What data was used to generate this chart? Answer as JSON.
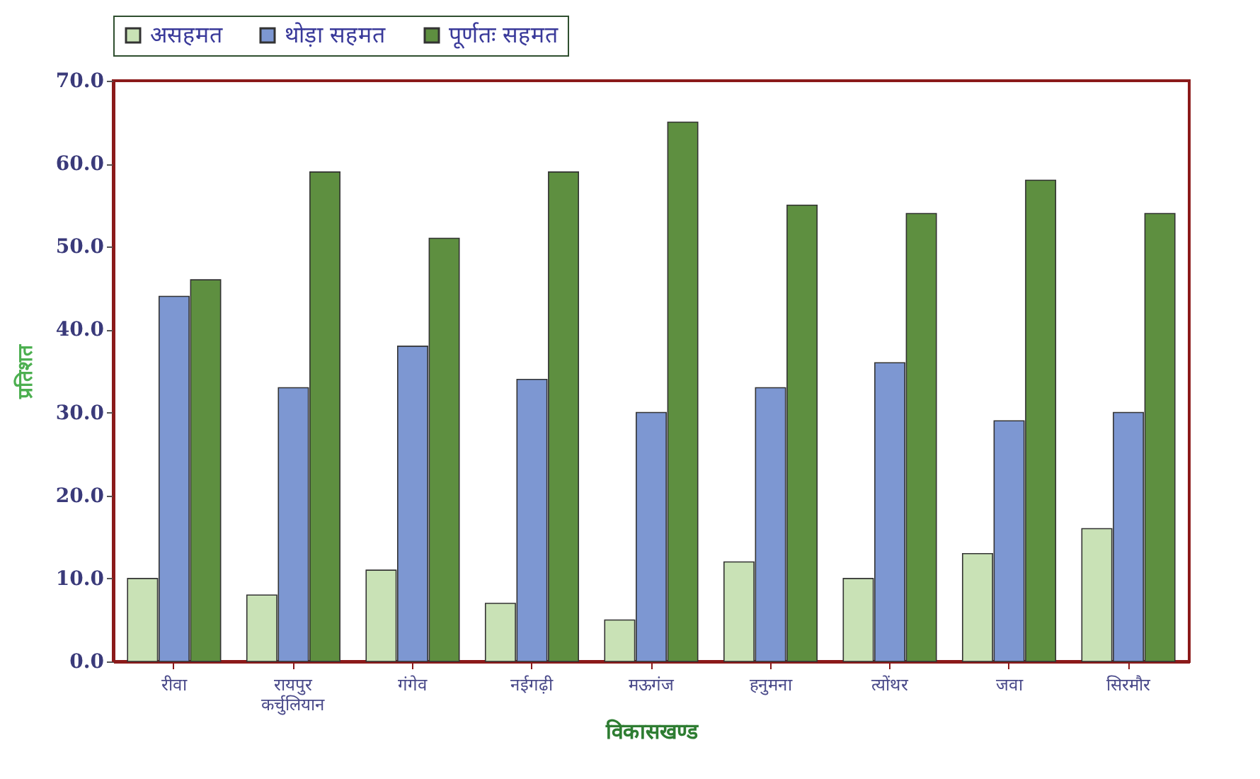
{
  "chart_data": {
    "type": "bar",
    "xlabel": "विकासखण्ड",
    "ylabel": "प्रतिशत",
    "categories": [
      "रीवा",
      "रायपुर कर्चुलियान",
      "गंगेव",
      "नईगढ़ी",
      "मऊगंज",
      "हनुमना",
      "त्योंथर",
      "जवा",
      "सिरमौर"
    ],
    "series": [
      {
        "name": "असहमत",
        "color": "#c9e2b6",
        "values": [
          10,
          8,
          11,
          7,
          5,
          12,
          10,
          13,
          16
        ]
      },
      {
        "name": "थोड़ा सहमत",
        "color": "#7d97d2",
        "values": [
          44,
          33,
          38,
          34,
          30,
          33,
          36,
          29,
          30
        ]
      },
      {
        "name": "पूर्णतः सहमत",
        "color": "#5e8f40",
        "values": [
          46,
          59,
          51,
          59,
          65,
          55,
          54,
          58,
          54
        ]
      }
    ],
    "ylim": [
      0,
      70
    ],
    "yticks": [
      {
        "value": 0,
        "label": "0.0"
      },
      {
        "value": 10,
        "label": "10.0"
      },
      {
        "value": 20,
        "label": "20.0"
      },
      {
        "value": 30,
        "label": "30.0"
      },
      {
        "value": 40,
        "label": "40.0"
      },
      {
        "value": 50,
        "label": "50.0"
      },
      {
        "value": 60,
        "label": "60.0"
      },
      {
        "value": 70,
        "label": "70.0"
      }
    ],
    "grid": false,
    "legend": "top"
  }
}
